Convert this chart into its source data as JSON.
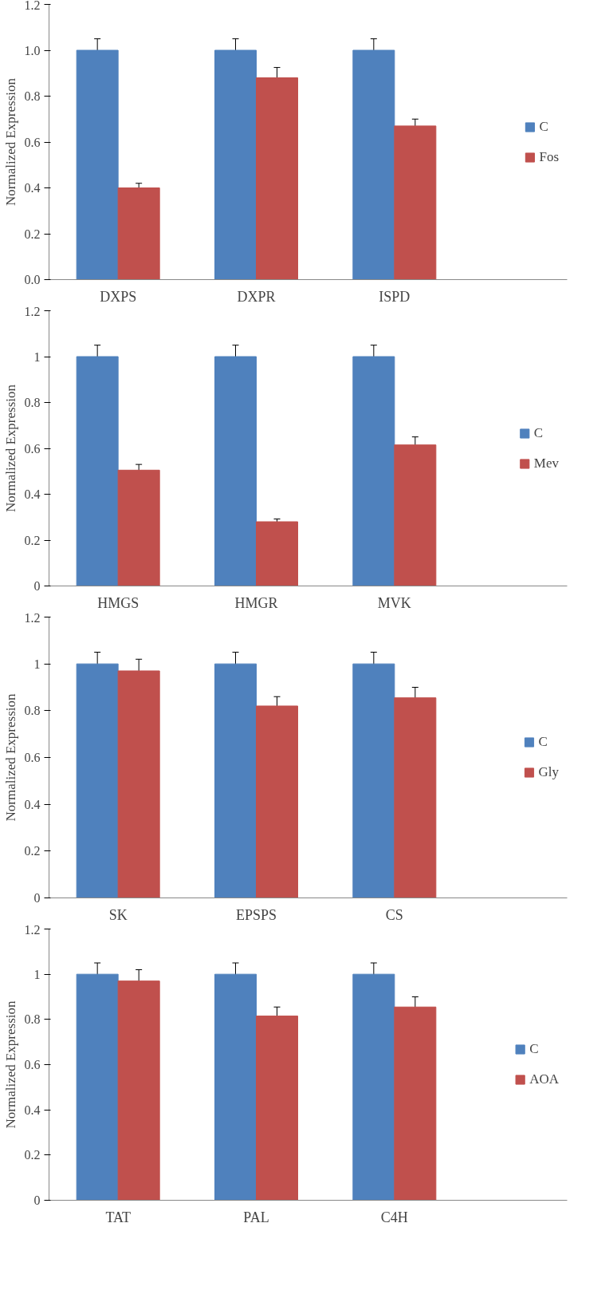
{
  "chart_data": [
    {
      "type": "bar",
      "ylabel": "Normalized Expression",
      "categories": [
        "DXPS",
        "DXPR",
        "ISPD"
      ],
      "ylim": [
        0,
        1.2
      ],
      "yticks": [
        {
          "value": 0,
          "label": "0.0"
        },
        {
          "value": 0.2,
          "label": "0.2"
        },
        {
          "value": 0.4,
          "label": "0.4"
        },
        {
          "value": 0.6,
          "label": "0.6"
        },
        {
          "value": 0.8,
          "label": "0.8"
        },
        {
          "value": 1,
          "label": "1.0"
        },
        {
          "value": 1.2,
          "label": "1.2"
        }
      ],
      "grid": false,
      "legend": "right",
      "series": [
        {
          "name": "C",
          "color": "#4f81bd",
          "values": [
            1.0,
            1.0,
            1.0
          ],
          "errors": [
            0.05,
            0.05,
            0.05
          ]
        },
        {
          "name": "Fos",
          "color": "#c0504d",
          "values": [
            0.4,
            0.88,
            0.67
          ],
          "errors": [
            0.02,
            0.045,
            0.03
          ]
        }
      ]
    },
    {
      "type": "bar",
      "ylabel": "Normalized Expression",
      "categories": [
        "HMGS",
        "HMGR",
        "MVK"
      ],
      "ylim": [
        0,
        1.2
      ],
      "yticks": [
        0,
        0.2,
        0.4,
        0.6,
        0.8,
        1,
        1.2
      ],
      "grid": false,
      "legend": "right",
      "series": [
        {
          "name": "C",
          "color": "#4f81bd",
          "values": [
            1.0,
            1.0,
            1.0
          ],
          "errors": [
            0.05,
            0.05,
            0.05
          ]
        },
        {
          "name": "Mev",
          "color": "#c0504d",
          "values": [
            0.505,
            0.28,
            0.615
          ],
          "errors": [
            0.025,
            0.012,
            0.035
          ]
        }
      ]
    },
    {
      "type": "bar",
      "ylabel": "Normalized Expression",
      "categories": [
        "SK",
        "EPSPS",
        "CS"
      ],
      "ylim": [
        0,
        1.2
      ],
      "yticks": [
        0,
        0.2,
        0.4,
        0.6,
        0.8,
        1,
        1.2
      ],
      "grid": false,
      "legend": "right",
      "series": [
        {
          "name": "C",
          "color": "#4f81bd",
          "values": [
            1.0,
            1.0,
            1.0
          ],
          "errors": [
            0.05,
            0.05,
            0.05
          ]
        },
        {
          "name": "Gly",
          "color": "#c0504d",
          "values": [
            0.97,
            0.82,
            0.855
          ],
          "errors": [
            0.05,
            0.04,
            0.045
          ]
        }
      ]
    },
    {
      "type": "bar",
      "ylabel": "Normalized Expression",
      "categories": [
        "TAT",
        "PAL",
        "C4H"
      ],
      "ylim": [
        0,
        1.2
      ],
      "yticks": [
        0,
        0.2,
        0.4,
        0.6,
        0.8,
        1,
        1.2
      ],
      "grid": false,
      "legend": "right",
      "series": [
        {
          "name": "C",
          "color": "#4f81bd",
          "values": [
            1.0,
            1.0,
            1.0
          ],
          "errors": [
            0.05,
            0.05,
            0.05
          ]
        },
        {
          "name": "AOA",
          "color": "#c0504d",
          "values": [
            0.97,
            0.815,
            0.855
          ],
          "errors": [
            0.05,
            0.04,
            0.045
          ]
        }
      ]
    }
  ]
}
